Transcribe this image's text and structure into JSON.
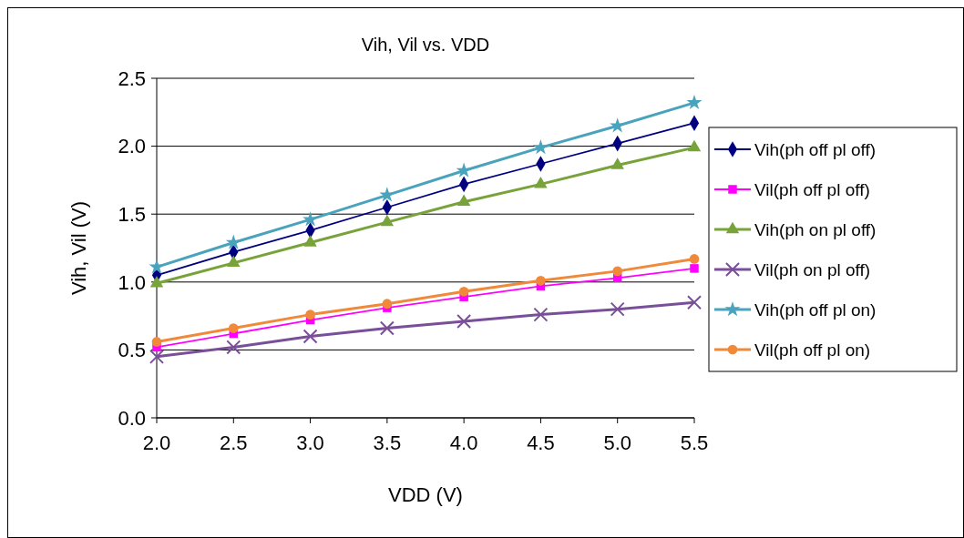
{
  "chart_data": {
    "type": "line",
    "title": "Vih, Vil vs. VDD",
    "xlabel": "VDD (V)",
    "ylabel": "Vih, Vil (V)",
    "x": [
      2.0,
      2.5,
      3.0,
      3.5,
      4.0,
      4.5,
      5.0,
      5.5
    ],
    "xlim": [
      2.0,
      5.5
    ],
    "xticks": [
      {
        "value": 2,
        "label": "2.0"
      },
      {
        "value": 2.5,
        "label": "2.5"
      },
      {
        "value": 3,
        "label": "3.0"
      },
      {
        "value": 3.5,
        "label": "3.5"
      },
      {
        "value": 4,
        "label": "4.0"
      },
      {
        "value": 4.5,
        "label": "4.5"
      },
      {
        "value": 5,
        "label": "5.0"
      },
      {
        "value": 5.5,
        "label": "5.5"
      }
    ],
    "ylim": [
      0,
      2.5
    ],
    "yticks": [
      {
        "value": 0,
        "label": "0.0"
      },
      {
        "value": 0.5,
        "label": "0.5"
      },
      {
        "value": 1,
        "label": "1.0"
      },
      {
        "value": 1.5,
        "label": "1.5"
      },
      {
        "value": 2,
        "label": "2.0"
      },
      {
        "value": 2.5,
        "label": "2.5"
      }
    ],
    "grid": "y",
    "legend": "right",
    "line_style": "solid",
    "series": [
      {
        "name": "Vih(ph off pl off)",
        "color": "#000080",
        "marker": "diamond",
        "values": [
          1.05,
          1.22,
          1.38,
          1.55,
          1.72,
          1.87,
          2.02,
          2.17
        ]
      },
      {
        "name": "Vil(ph off pl off)",
        "color": "#ff00ff",
        "marker": "square",
        "values": [
          0.52,
          0.62,
          0.72,
          0.81,
          0.89,
          0.97,
          1.03,
          1.1
        ]
      },
      {
        "name": "Vih(ph on pl off)",
        "color": "#77a33a",
        "marker": "triangle",
        "values": [
          0.99,
          1.14,
          1.29,
          1.44,
          1.59,
          1.72,
          1.86,
          1.99
        ]
      },
      {
        "name": "Vil(ph on pl off)",
        "color": "#7a4f9a",
        "marker": "cross",
        "values": [
          0.45,
          0.52,
          0.6,
          0.66,
          0.71,
          0.76,
          0.8,
          0.85
        ]
      },
      {
        "name": "Vih(ph off pl on)",
        "color": "#4aa3bd",
        "marker": "star",
        "values": [
          1.11,
          1.29,
          1.46,
          1.64,
          1.82,
          1.99,
          2.15,
          2.32
        ]
      },
      {
        "name": "Vil(ph off pl on)",
        "color": "#f08a3a",
        "marker": "circle",
        "values": [
          0.56,
          0.66,
          0.76,
          0.84,
          0.93,
          1.01,
          1.08,
          1.17
        ]
      }
    ]
  }
}
